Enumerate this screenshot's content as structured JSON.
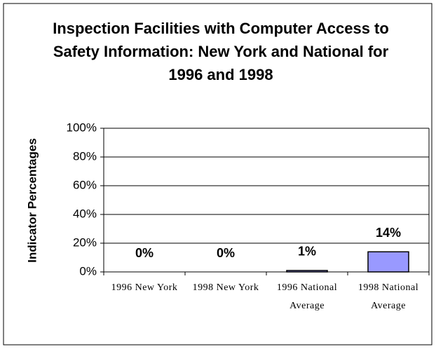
{
  "chart_data": {
    "type": "bar",
    "title": "Inspection Facilities with Computer Access to Safety Information: New York and National for 1996 and 1998",
    "y_label": "Indicator Percentages",
    "categories": [
      "1996 New York",
      "1998 New York",
      "1996 National Average",
      "1998 National Average"
    ],
    "values": [
      0,
      0,
      1,
      14
    ],
    "value_labels": [
      "0%",
      "0%",
      "1%",
      "14%"
    ],
    "color": "#9999ff",
    "ylim": [
      0,
      100
    ],
    "yticks": [
      {
        "value": 0,
        "label": "0%"
      },
      {
        "value": 20,
        "label": "20%"
      },
      {
        "value": 40,
        "label": "40%"
      },
      {
        "value": 60,
        "label": "60%"
      },
      {
        "value": 80,
        "label": "80%"
      },
      {
        "value": 100,
        "label": "100%"
      }
    ],
    "grid": true
  }
}
